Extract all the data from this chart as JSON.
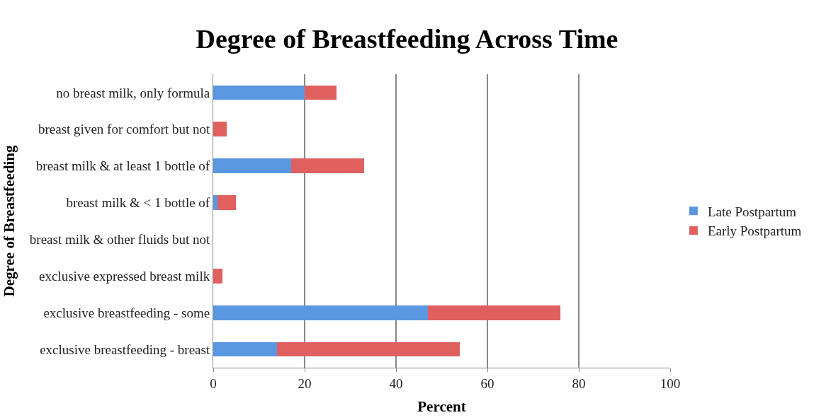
{
  "chart_data": {
    "type": "bar",
    "title": "Degree of Breastfeeding Across Time",
    "xlabel": "Percent",
    "ylabel": "Degree of Breastfeeding",
    "orientation": "horizontal",
    "stacked": true,
    "categories": [
      "no breast milk, only formula",
      "breast given for comfort but not",
      "breast milk & at least 1 bottle of",
      "breast milk & < 1 bottle of",
      "breast milk & other fluids but not",
      "exclusive expressed breast milk",
      "exclusive breastfeeding - some",
      "exclusive breastfeeding - breast"
    ],
    "series": [
      {
        "name": "Late Postpartum",
        "color": "#5b97e0",
        "values": [
          20,
          0,
          17,
          1,
          0,
          0,
          47,
          14
        ]
      },
      {
        "name": "Early Postpartum",
        "color": "#e06060",
        "values": [
          7,
          3,
          16,
          4,
          0,
          2,
          29,
          40
        ]
      }
    ],
    "xlim": [
      0,
      100
    ],
    "xticks": [
      0,
      20,
      40,
      60,
      80,
      100
    ],
    "grid": "x",
    "legend": "right"
  }
}
